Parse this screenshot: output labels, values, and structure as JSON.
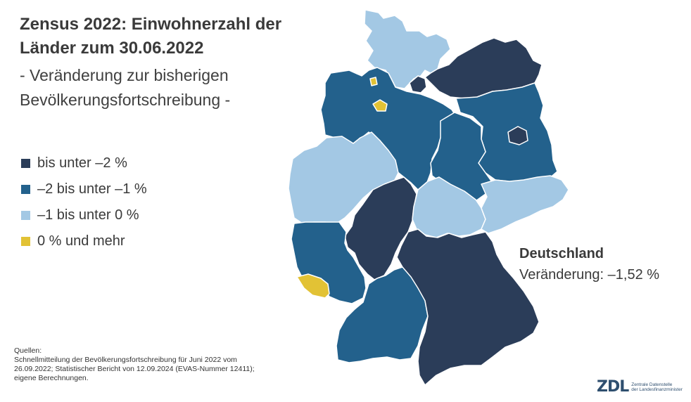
{
  "title_line1": "Zensus 2022: Einwohnerzahl der",
  "title_line2": "Länder zum 30.06.2022",
  "subtitle_line1": "- Veränderung zur bisherigen",
  "subtitle_line2": "Bevölkerungsfortschreibung  -",
  "legend": [
    {
      "label": "bis unter –2 %",
      "color": "#2b3d59"
    },
    {
      "label": "–2 bis unter –1 %",
      "color": "#23618c"
    },
    {
      "label": "–1 bis unter 0 %",
      "color": "#a3c8e4"
    },
    {
      "label": "0 % und mehr",
      "color": "#e2c235"
    }
  ],
  "summary": {
    "heading": "Deutschland",
    "value": "Veränderung: –1,52 %"
  },
  "sources": {
    "label": "Quellen:",
    "line1": "Schnellmitteilung der Bevölkerungsfortschreibung für Juni 2022 vom",
    "line2": "26.09.2022; Statistischer Bericht von 12.09.2024 (EVAS-Nummer 12411);",
    "line3": "eigene Berechnungen."
  },
  "logo": {
    "mark": "ZDL",
    "line1": "Zentrale Datenstelle",
    "line2": "der Landesfinanzminister"
  },
  "states": [
    {
      "id": "schleswig-holstein",
      "color": "#a3c8e4"
    },
    {
      "id": "hamburg",
      "color": "#2b3d59"
    },
    {
      "id": "mecklenburg-vorpommern",
      "color": "#2b3d59"
    },
    {
      "id": "bremen",
      "color": "#e2c235"
    },
    {
      "id": "niedersachsen",
      "color": "#23618c"
    },
    {
      "id": "berlin",
      "color": "#2b3d59"
    },
    {
      "id": "brandenburg",
      "color": "#23618c"
    },
    {
      "id": "sachsen-anhalt",
      "color": "#23618c"
    },
    {
      "id": "nordrhein-westfalen",
      "color": "#a3c8e4"
    },
    {
      "id": "hessen",
      "color": "#2b3d59"
    },
    {
      "id": "thueringen",
      "color": "#a3c8e4"
    },
    {
      "id": "sachsen",
      "color": "#a3c8e4"
    },
    {
      "id": "rheinland-pfalz",
      "color": "#23618c"
    },
    {
      "id": "saarland",
      "color": "#e2c235"
    },
    {
      "id": "baden-wuerttemberg",
      "color": "#23618c"
    },
    {
      "id": "bayern",
      "color": "#2b3d59"
    }
  ]
}
